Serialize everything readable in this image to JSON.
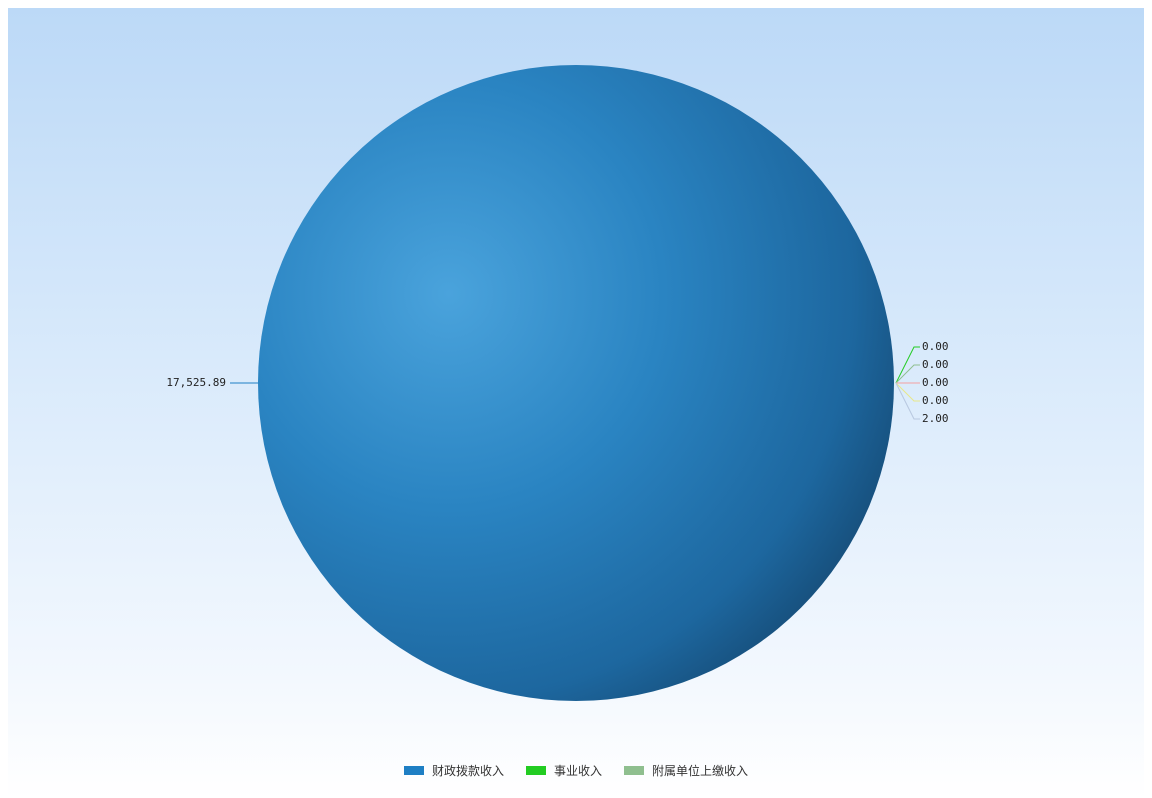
{
  "chart_data": {
    "type": "pie",
    "title": "",
    "slices": [
      {
        "name": "财政拨款收入",
        "value": 17525.89,
        "label": "17,525.89",
        "color": "#1e7fc4"
      },
      {
        "name": "事业收入",
        "value": 0.0,
        "label": "0.00",
        "color": "#22cc22"
      },
      {
        "name": "附属单位上缴收入",
        "value": 0.0,
        "label": "0.00",
        "color": "#8fbf8f"
      },
      {
        "name": "",
        "value": 0.0,
        "label": "0.00",
        "color": "#f4a0a0"
      },
      {
        "name": "",
        "value": 0.0,
        "label": "0.00",
        "color": "#e8e88a"
      },
      {
        "name": "",
        "value": 2.0,
        "label": "2.00",
        "color": "#b8c8e0"
      }
    ],
    "legend_position": "bottom"
  }
}
